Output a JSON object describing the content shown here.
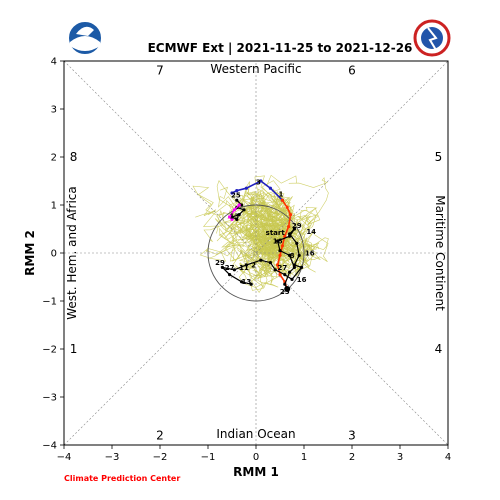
{
  "header": {
    "title": "ECMWF Ext | 2021-11-25 to 2021-12-26",
    "credit": "Climate Prediction Center"
  },
  "logos": {
    "left": "noaa-logo",
    "right": "nws-logo"
  },
  "colors": {
    "ensemble": "#c8c850",
    "ens_mean": "#000000",
    "obs_seg1": "#2020c0",
    "obs_seg2": "#ff3300",
    "forecast_tail": "#ff00ff",
    "circle": "#555555",
    "guide": "#888888"
  },
  "chart_data": {
    "type": "line",
    "title": "ECMWF Ext | 2021-11-25 to 2021-12-26",
    "xlabel": "RMM 1",
    "ylabel": "RMM 2",
    "xlim": [
      -4,
      4
    ],
    "ylim": [
      -4,
      4
    ],
    "xticks": [
      "−4",
      "−3",
      "−2",
      "−1",
      "0",
      "1",
      "2",
      "3",
      "4"
    ],
    "yticks": [
      "−4",
      "−3",
      "−2",
      "−1",
      "0",
      "1",
      "2",
      "3",
      "4"
    ],
    "grid": false,
    "phases": [
      {
        "label": "1",
        "x": -3.8,
        "y": -2.0
      },
      {
        "label": "2",
        "x": -2.0,
        "y": -3.8
      },
      {
        "label": "3",
        "x": 2.0,
        "y": -3.8
      },
      {
        "label": "4",
        "x": 3.8,
        "y": -2.0
      },
      {
        "label": "5",
        "x": 3.8,
        "y": 2.0
      },
      {
        "label": "6",
        "x": 2.0,
        "y": 3.8
      },
      {
        "label": "7",
        "x": -2.0,
        "y": 3.8
      },
      {
        "label": "8",
        "x": -3.8,
        "y": 2.0
      }
    ],
    "regions": {
      "top": "Western Pacific",
      "bottom": "Indian Ocean",
      "left": "West. Hem. and Africa",
      "right": "Maritime Continent"
    },
    "observed_blue": [
      [
        -0.5,
        1.25
      ],
      [
        -0.4,
        1.3
      ],
      [
        -0.2,
        1.35
      ],
      [
        0.1,
        1.5
      ],
      [
        0.3,
        1.35
      ],
      [
        0.55,
        1.1
      ]
    ],
    "observed_red": [
      [
        0.55,
        1.1
      ],
      [
        0.65,
        0.95
      ],
      [
        0.72,
        0.8
      ],
      [
        0.68,
        0.55
      ],
      [
        0.6,
        0.35
      ],
      [
        0.55,
        0.15
      ],
      [
        0.5,
        -0.05
      ],
      [
        0.45,
        -0.25
      ],
      [
        0.5,
        -0.45
      ],
      [
        0.6,
        -0.6
      ],
      [
        0.65,
        -0.75
      ]
    ],
    "forecast_magenta": [
      [
        -0.35,
        1.0
      ],
      [
        -0.45,
        0.9
      ],
      [
        -0.55,
        0.75
      ],
      [
        -0.5,
        0.7
      ]
    ],
    "ens_mean_a": [
      [
        0.65,
        -0.75
      ],
      [
        0.6,
        -0.65
      ],
      [
        0.7,
        -0.4
      ],
      [
        0.8,
        -0.3
      ],
      [
        0.7,
        -0.05
      ],
      [
        0.5,
        0.05
      ],
      [
        0.45,
        0.25
      ],
      [
        0.7,
        0.35
      ],
      [
        0.8,
        0.5
      ],
      [
        0.7,
        0.4
      ],
      [
        0.85,
        0.2
      ],
      [
        0.9,
        -0.05
      ],
      [
        0.8,
        -0.25
      ],
      [
        0.95,
        -0.3
      ],
      [
        0.75,
        -0.55
      ],
      [
        0.6,
        -0.45
      ],
      [
        0.4,
        -0.35
      ],
      [
        0.3,
        -0.2
      ],
      [
        0.1,
        -0.15
      ],
      [
        -0.2,
        -0.25
      ],
      [
        -0.45,
        -0.35
      ],
      [
        -0.7,
        -0.3
      ],
      [
        -0.55,
        -0.45
      ],
      [
        -0.3,
        -0.6
      ],
      [
        -0.1,
        -0.65
      ]
    ],
    "ens_mean_b": [
      [
        -0.4,
        1.1
      ],
      [
        -0.3,
        1.0
      ],
      [
        -0.4,
        0.95
      ],
      [
        -0.25,
        0.9
      ],
      [
        -0.35,
        0.8
      ],
      [
        -0.5,
        0.75
      ],
      [
        -0.4,
        0.7
      ]
    ],
    "point_labels": [
      {
        "text": "1",
        "x": 0.52,
        "y": 1.18
      },
      {
        "text": "3",
        "x": 0.05,
        "y": 1.43
      },
      {
        "text": "25",
        "x": -0.42,
        "y": 1.16
      },
      {
        "text": "start",
        "x": 0.4,
        "y": 0.38
      },
      {
        "text": "29",
        "x": 0.85,
        "y": 0.52
      },
      {
        "text": "14",
        "x": 1.15,
        "y": 0.4
      },
      {
        "text": "16",
        "x": 0.45,
        "y": 0.2
      },
      {
        "text": "16",
        "x": 1.12,
        "y": -0.05
      },
      {
        "text": "8",
        "x": 0.75,
        "y": -0.1
      },
      {
        "text": "27",
        "x": 0.55,
        "y": -0.35
      },
      {
        "text": "16",
        "x": 0.95,
        "y": -0.6
      },
      {
        "text": "25",
        "x": 0.6,
        "y": -0.85
      },
      {
        "text": "29",
        "x": -0.75,
        "y": -0.25
      },
      {
        "text": "27",
        "x": -0.55,
        "y": -0.35
      },
      {
        "text": "11",
        "x": -0.25,
        "y": -0.35
      },
      {
        "text": "2",
        "x": -0.05,
        "y": -0.3
      },
      {
        "text": "13",
        "x": -0.2,
        "y": -0.65
      },
      {
        "text": "13",
        "x": -0.45,
        "y": 0.72
      }
    ]
  }
}
